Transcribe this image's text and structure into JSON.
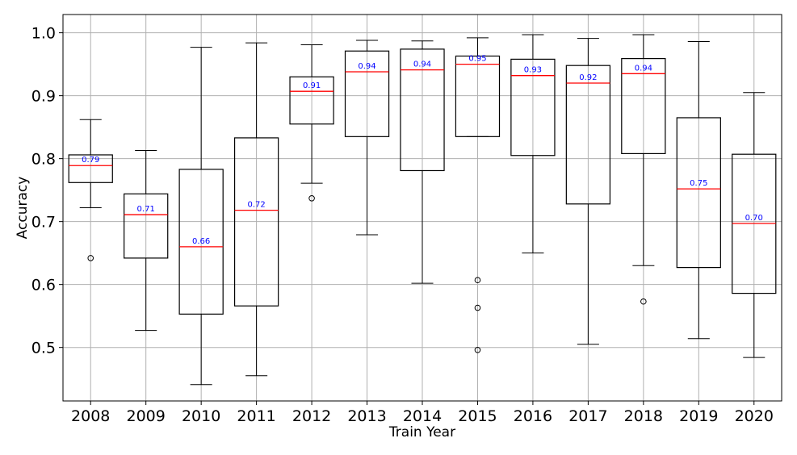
{
  "chart_data": {
    "type": "box",
    "title": "",
    "xlabel": "Train Year",
    "ylabel": "Accuracy",
    "categories": [
      "2008",
      "2009",
      "2010",
      "2011",
      "2012",
      "2013",
      "2014",
      "2015",
      "2016",
      "2017",
      "2018",
      "2019",
      "2020"
    ],
    "boxes": [
      {
        "category": "2008",
        "whisker_low": 0.722,
        "q1": 0.762,
        "median": 0.789,
        "q3": 0.806,
        "whisker_high": 0.862,
        "outliers": [
          0.642
        ],
        "median_label": "0.79"
      },
      {
        "category": "2009",
        "whisker_low": 0.527,
        "q1": 0.642,
        "median": 0.711,
        "q3": 0.744,
        "whisker_high": 0.813,
        "outliers": [],
        "median_label": "0.71"
      },
      {
        "category": "2010",
        "whisker_low": 0.441,
        "q1": 0.553,
        "median": 0.66,
        "q3": 0.783,
        "whisker_high": 0.977,
        "outliers": [],
        "median_label": "0.66"
      },
      {
        "category": "2011",
        "whisker_low": 0.455,
        "q1": 0.566,
        "median": 0.718,
        "q3": 0.833,
        "whisker_high": 0.984,
        "outliers": [],
        "median_label": "0.72"
      },
      {
        "category": "2012",
        "whisker_low": 0.761,
        "q1": 0.855,
        "median": 0.907,
        "q3": 0.93,
        "whisker_high": 0.981,
        "outliers": [
          0.737
        ],
        "median_label": "0.91"
      },
      {
        "category": "2013",
        "whisker_low": 0.679,
        "q1": 0.835,
        "median": 0.938,
        "q3": 0.971,
        "whisker_high": 0.988,
        "outliers": [],
        "median_label": "0.94"
      },
      {
        "category": "2014",
        "whisker_low": 0.602,
        "q1": 0.781,
        "median": 0.941,
        "q3": 0.974,
        "whisker_high": 0.987,
        "outliers": [],
        "median_label": "0.94"
      },
      {
        "category": "2015",
        "whisker_low": 0.835,
        "q1": 0.835,
        "median": 0.95,
        "q3": 0.963,
        "whisker_high": 0.992,
        "outliers": [
          0.607,
          0.563,
          0.496
        ],
        "median_label": "0.95"
      },
      {
        "category": "2016",
        "whisker_low": 0.65,
        "q1": 0.805,
        "median": 0.932,
        "q3": 0.958,
        "whisker_high": 0.997,
        "outliers": [],
        "median_label": "0.93"
      },
      {
        "category": "2017",
        "whisker_low": 0.505,
        "q1": 0.728,
        "median": 0.92,
        "q3": 0.948,
        "whisker_high": 0.991,
        "outliers": [],
        "median_label": "0.92"
      },
      {
        "category": "2018",
        "whisker_low": 0.63,
        "q1": 0.808,
        "median": 0.935,
        "q3": 0.959,
        "whisker_high": 0.997,
        "outliers": [
          0.573
        ],
        "median_label": "0.94"
      },
      {
        "category": "2019",
        "whisker_low": 0.514,
        "q1": 0.627,
        "median": 0.752,
        "q3": 0.865,
        "whisker_high": 0.986,
        "outliers": [],
        "median_label": "0.75"
      },
      {
        "category": "2020",
        "whisker_low": 0.484,
        "q1": 0.586,
        "median": 0.697,
        "q3": 0.807,
        "whisker_high": 0.905,
        "outliers": [],
        "median_label": "0.70"
      }
    ],
    "yticks": [
      0.5,
      0.6,
      0.7,
      0.8,
      0.9,
      1.0
    ],
    "ytick_labels": [
      "0.5",
      "0.6",
      "0.7",
      "0.8",
      "0.9",
      "1.0"
    ],
    "ylim": [
      0.415,
      1.029
    ],
    "grid": true,
    "colors": {
      "box": "#000000",
      "median": "#ff0000",
      "median_label": "#0000ff",
      "grid": "#b0b0b0",
      "outlier": "#000000"
    }
  }
}
